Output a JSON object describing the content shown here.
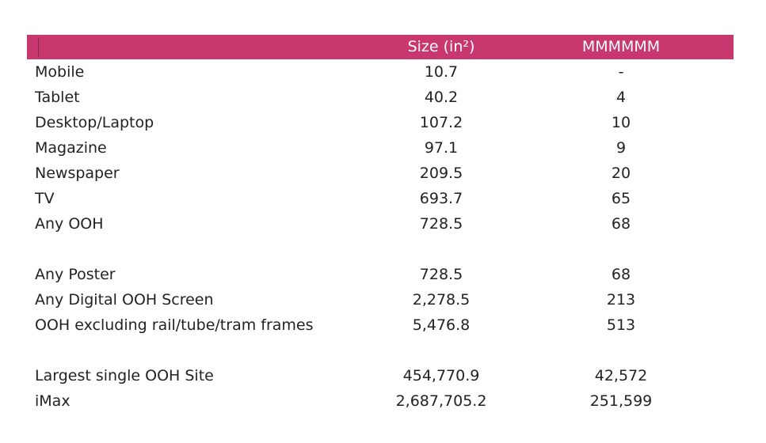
{
  "header": {
    "col_label": "",
    "col_size": "Size (in²)",
    "col_rel": "MMMMMM"
  },
  "rows": [
    {
      "label": "Mobile",
      "size": "10.7",
      "rel": "-"
    },
    {
      "label": "Tablet",
      "size": "40.2",
      "rel": "4"
    },
    {
      "label": "Desktop/Laptop",
      "size": "107.2",
      "rel": "10"
    },
    {
      "label": "Magazine",
      "size": "97.1",
      "rel": "9"
    },
    {
      "label": "Newspaper",
      "size": "209.5",
      "rel": "20"
    },
    {
      "label": "TV",
      "size": "693.7",
      "rel": "65"
    },
    {
      "label": "Any OOH",
      "size": "728.5",
      "rel": "68"
    },
    {
      "label": "Any Poster",
      "size": "728.5",
      "rel": "68"
    },
    {
      "label": "Any Digital OOH Screen",
      "size": "2,278.5",
      "rel": "213"
    },
    {
      "label": "OOH excluding rail/tube/tram frames",
      "size": "5,476.8",
      "rel": "513"
    },
    {
      "label": "Largest single OOH Site",
      "size": "454,770.9",
      "rel": "42,572"
    },
    {
      "label": "iMax",
      "size": "2,687,705.2",
      "rel": "251,599"
    }
  ],
  "colors": {
    "header_bg": "#c8386f",
    "header_text": "#ffffff",
    "body_text": "#222222"
  }
}
